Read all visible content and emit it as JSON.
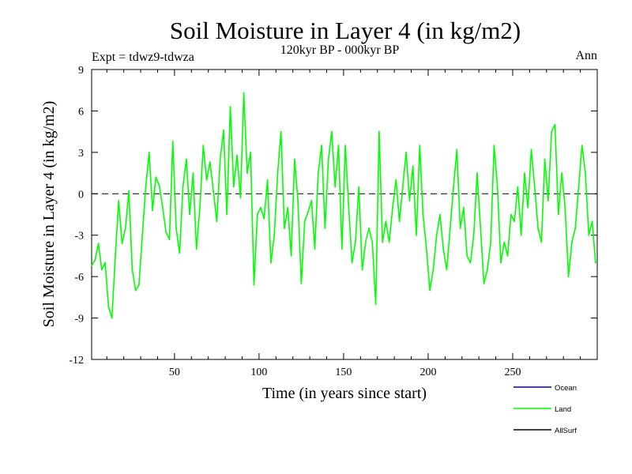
{
  "chart_data": {
    "type": "line",
    "title": "Soil Moisture in Layer 4 (in kg/m2)",
    "subtitle": "120kyr BP - 000kyr BP",
    "experiment_label": "Expt = tdwz9-tdwza",
    "season_label": "Ann",
    "xlabel": "Time (in years since start)",
    "ylabel": "Soil Moisture in Layer 4 (in kg/m2)",
    "xlim": [
      1,
      300
    ],
    "ylim": [
      -12,
      9
    ],
    "x_ticks": [
      50,
      100,
      150,
      200,
      250
    ],
    "y_ticks": [
      -12,
      -9,
      -6,
      -3,
      0,
      3,
      6,
      9
    ],
    "zero_line": {
      "y": 0,
      "style": "dashed"
    },
    "legend_position": "bottom-right",
    "series": [
      {
        "name": "Ocean",
        "color": "#0000cc",
        "x": [],
        "values": []
      },
      {
        "name": "Land",
        "color": "#00ff00",
        "x": [
          1,
          3,
          5,
          7,
          9,
          11,
          13,
          15,
          17,
          19,
          21,
          23,
          25,
          27,
          29,
          31,
          33,
          35,
          37,
          39,
          41,
          43,
          45,
          47,
          49,
          51,
          53,
          55,
          57,
          59,
          61,
          63,
          65,
          67,
          69,
          71,
          73,
          75,
          77,
          79,
          81,
          83,
          85,
          87,
          89,
          91,
          93,
          95,
          97,
          99,
          101,
          103,
          105,
          107,
          109,
          111,
          113,
          115,
          117,
          119,
          121,
          123,
          125,
          127,
          129,
          131,
          133,
          135,
          137,
          139,
          141,
          143,
          145,
          147,
          149,
          151,
          153,
          155,
          157,
          159,
          161,
          163,
          165,
          167,
          169,
          171,
          173,
          175,
          177,
          179,
          181,
          183,
          185,
          187,
          189,
          191,
          193,
          195,
          197,
          199,
          201,
          203,
          205,
          207,
          209,
          211,
          213,
          215,
          217,
          219,
          221,
          223,
          225,
          227,
          229,
          231,
          233,
          235,
          237,
          239,
          241,
          243,
          245,
          247,
          249,
          251,
          253,
          255,
          257,
          259,
          261,
          263,
          265,
          267,
          269,
          271,
          273,
          275,
          277,
          279,
          281,
          283,
          285,
          287,
          289,
          291,
          293,
          295,
          297,
          299
        ],
        "values": [
          -5.2,
          -4.8,
          -3.6,
          -5.5,
          -5.0,
          -8.2,
          -9.0,
          -4.5,
          -0.5,
          -3.6,
          -2.5,
          0.2,
          -5.5,
          -7.0,
          -6.6,
          -3.0,
          0.5,
          3.0,
          -1.2,
          1.2,
          0.6,
          -1.0,
          -2.8,
          -3.3,
          3.8,
          -2.5,
          -4.3,
          0.5,
          2.5,
          -1.5,
          1.5,
          -4.0,
          -1.0,
          3.5,
          1.0,
          2.3,
          0.2,
          -2.0,
          2.5,
          4.6,
          -1.5,
          6.3,
          0.5,
          2.8,
          -0.3,
          7.3,
          1.5,
          3.0,
          -6.6,
          -1.5,
          -1.0,
          -1.8,
          1.0,
          -5.0,
          -3.0,
          1.5,
          4.5,
          -2.5,
          -1.0,
          -4.5,
          2.5,
          -0.5,
          -6.5,
          -2.0,
          -1.3,
          -0.5,
          -4.0,
          1.5,
          3.5,
          -2.5,
          2.5,
          4.5,
          0.5,
          3.5,
          -4.0,
          3.5,
          -1.0,
          -5.0,
          -3.5,
          0.5,
          -5.5,
          -3.5,
          -2.5,
          -3.5,
          -8.0,
          4.5,
          -3.5,
          -2.0,
          -3.5,
          -1.0,
          1.0,
          -2.0,
          0.5,
          3.0,
          -0.5,
          2.0,
          -3.0,
          3.5,
          -1.5,
          -4.0,
          -7.0,
          -5.5,
          -3.0,
          -1.5,
          -4.0,
          -5.5,
          -2.5,
          0.5,
          3.2,
          -2.5,
          -1.0,
          -4.5,
          -5.0,
          -3.0,
          1.5,
          -2.5,
          -6.5,
          -5.5,
          -3.5,
          3.5,
          0.5,
          -5.0,
          -3.5,
          -4.5,
          -1.5,
          -2.0,
          0.5,
          -3.0,
          1.5,
          -1.0,
          3.2,
          0.5,
          -2.5,
          -3.5,
          2.5,
          -0.5,
          4.5,
          5.0,
          -1.5,
          1.5,
          -1.0,
          -6.0,
          -3.5,
          -2.5,
          0.5,
          3.5,
          1.5,
          -3.0,
          -2.0,
          -5.0
        ]
      },
      {
        "name": "AllSurf",
        "color": "#000000",
        "x": [],
        "values": []
      }
    ]
  }
}
